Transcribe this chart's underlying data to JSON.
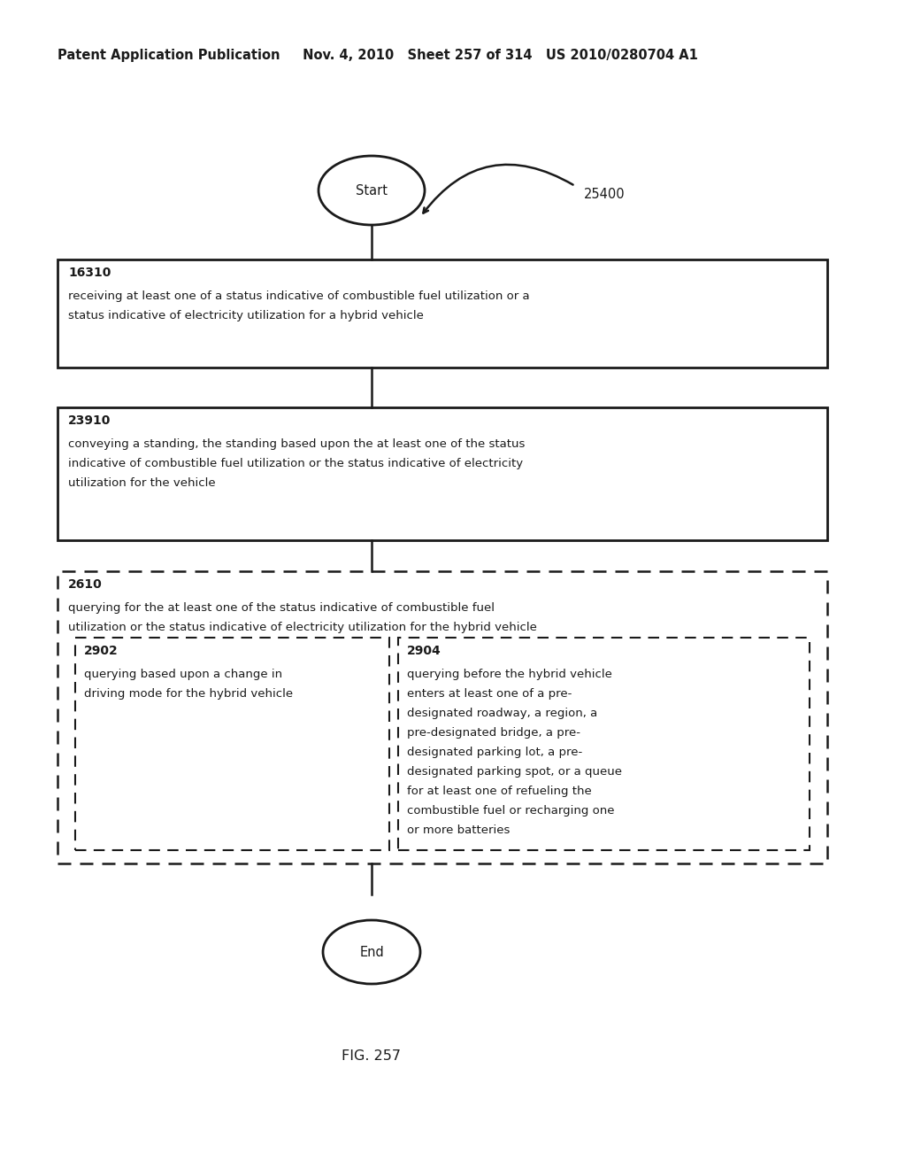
{
  "bg_color": "#ffffff",
  "header_text": "Patent Application Publication     Nov. 4, 2010   Sheet 257 of 314   US 2010/0280704 A1",
  "header_fontsize": 10.5,
  "fig_label": "FIG. 257",
  "diagram_label": "25400",
  "start_label": "Start",
  "end_label": "End",
  "box1_id": "16310",
  "box1_line1": "receiving at least one of a status indicative of combustible fuel utilization or a",
  "box1_line2": "status indicative of electricity utilization for a hybrid vehicle",
  "box2_id": "23910",
  "box2_line1": "conveying a standing, the standing based upon the at least one of the status",
  "box2_line2": "indicative of combustible fuel utilization or the status indicative of electricity",
  "box2_line3": "utilization for the vehicle",
  "box3_id": "2610",
  "box3_line1": "querying for the at least one of the status indicative of combustible fuel",
  "box3_line2": "utilization or the status indicative of electricity utilization for the hybrid vehicle",
  "box3a_id": "2902",
  "box3a_line1": "querying based upon a change in",
  "box3a_line2": "driving mode for the hybrid vehicle",
  "box3b_id": "2904",
  "box3b_line1": "querying before the hybrid vehicle",
  "box3b_line2": "enters at least one of a pre-",
  "box3b_line3": "designated roadway, a region, a",
  "box3b_line4": "pre-designated bridge, a pre-",
  "box3b_line5": "designated parking lot, a pre-",
  "box3b_line6": "designated parking spot, or a queue",
  "box3b_line7": "for at least one of refueling the",
  "box3b_line8": "combustible fuel or recharging one",
  "box3b_line9": "or more batteries",
  "text_color": "#1a1a1a",
  "box_edge_color": "#1a1a1a",
  "line_color": "#1a1a1a",
  "font_family": "DejaVu Sans",
  "fontsize": 9.5
}
